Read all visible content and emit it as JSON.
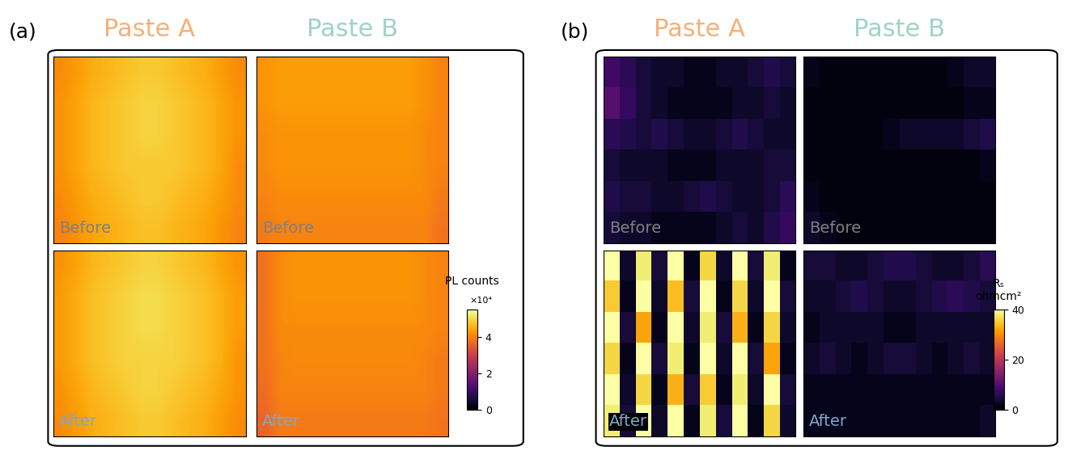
{
  "chart_data": [
    {
      "type": "heatmap",
      "panel_label": "(a)",
      "tick_labels": false,
      "columns": [
        "Paste A",
        "Paste B"
      ],
      "rows": [
        "Before",
        "After"
      ],
      "cells": [
        [
          [
            [
              41000,
              43000,
              45000,
              46000,
              47000,
              48000,
              48000,
              47000,
              46000,
              45000,
              43000,
              41000
            ],
            [
              42000,
              44000,
              46000,
              47000,
              48000,
              49000,
              49000,
              48000,
              47000,
              46000,
              44000,
              42000
            ],
            [
              42000,
              44000,
              46000,
              47000,
              48000,
              49000,
              49000,
              48000,
              47000,
              46000,
              44000,
              42000
            ],
            [
              42000,
              44000,
              46000,
              47000,
              48000,
              48000,
              48000,
              48000,
              47000,
              46000,
              44000,
              41000
            ],
            [
              41000,
              43000,
              45000,
              46000,
              47000,
              48000,
              48000,
              47000,
              46000,
              45000,
              43000,
              41000
            ],
            [
              40000,
              42000,
              44000,
              45000,
              46000,
              47000,
              47000,
              46000,
              45000,
              44000,
              42000,
              40000
            ]
          ],
          [
            [
              42000,
              43000,
              43000,
              43000,
              43000,
              43000,
              43000,
              43000,
              43000,
              43000,
              42000,
              40000
            ],
            [
              42000,
              43000,
              43000,
              43000,
              43000,
              43000,
              43000,
              43000,
              43000,
              43000,
              42000,
              40000
            ],
            [
              41000,
              42000,
              42000,
              42000,
              42000,
              42000,
              42000,
              42000,
              42000,
              42000,
              41000,
              40000
            ],
            [
              41000,
              42000,
              42000,
              42000,
              42000,
              42000,
              42000,
              42000,
              42000,
              42000,
              41000,
              40000
            ],
            [
              40000,
              41000,
              41000,
              41000,
              41000,
              41000,
              41000,
              41000,
              41000,
              41000,
              41000,
              39000
            ],
            [
              39000,
              40000,
              40000,
              40000,
              40000,
              40000,
              40000,
              40000,
              40000,
              40000,
              40000,
              38000
            ]
          ]
        ],
        [
          [
            [
              42000,
              44000,
              46000,
              47000,
              48000,
              49000,
              49000,
              48000,
              47000,
              46000,
              44000,
              42000
            ],
            [
              43000,
              45000,
              47000,
              48000,
              49000,
              50000,
              50000,
              49000,
              48000,
              47000,
              45000,
              43000
            ],
            [
              43000,
              45000,
              47000,
              48000,
              49000,
              50000,
              50000,
              49000,
              48000,
              47000,
              45000,
              43000
            ],
            [
              43000,
              45000,
              47000,
              48000,
              49000,
              49000,
              49000,
              49000,
              48000,
              47000,
              45000,
              42000
            ],
            [
              42000,
              44000,
              46000,
              47000,
              48000,
              49000,
              49000,
              48000,
              47000,
              46000,
              44000,
              42000
            ],
            [
              41000,
              43000,
              45000,
              46000,
              47000,
              48000,
              48000,
              47000,
              46000,
              45000,
              43000,
              41000
            ]
          ],
          [
            [
              38000,
              41000,
              42000,
              42000,
              42000,
              42000,
              42000,
              42000,
              42000,
              42000,
              41000,
              40000
            ],
            [
              38000,
              41000,
              42000,
              42000,
              42000,
              42000,
              42000,
              42000,
              42000,
              42000,
              41000,
              40000
            ],
            [
              38000,
              41000,
              41000,
              41000,
              41000,
              41000,
              41000,
              41000,
              41000,
              41000,
              41000,
              40000
            ],
            [
              38000,
              40000,
              41000,
              41000,
              41000,
              41000,
              41000,
              41000,
              41000,
              41000,
              40000,
              39000
            ],
            [
              37000,
              40000,
              40000,
              40000,
              40000,
              40000,
              40000,
              40000,
              40000,
              40000,
              40000,
              39000
            ],
            [
              36000,
              39000,
              39000,
              39000,
              39000,
              39000,
              39000,
              39000,
              39000,
              39000,
              39000,
              38000
            ]
          ]
        ]
      ],
      "colorbar": {
        "label": "PL counts",
        "multiplier": "×10⁴",
        "range": [
          0,
          55000
        ],
        "ticks": [
          {
            "value": 0,
            "label": "0"
          },
          {
            "value": 20000,
            "label": "2"
          },
          {
            "value": 40000,
            "label": "4"
          }
        ]
      }
    },
    {
      "type": "heatmap",
      "panel_label": "(b)",
      "tick_labels": false,
      "columns": [
        "Paste A",
        "Paste B"
      ],
      "rows": [
        "Before",
        "After"
      ],
      "cells": [
        [
          [
            [
              8,
              6,
              4,
              3,
              3,
              2,
              2,
              3,
              3,
              4,
              5,
              4
            ],
            [
              10,
              7,
              4,
              3,
              2,
              2,
              2,
              2,
              3,
              3,
              4,
              3
            ],
            [
              6,
              5,
              4,
              5,
              4,
              3,
              3,
              4,
              5,
              4,
              3,
              3
            ],
            [
              4,
              3,
              3,
              3,
              2,
              2,
              2,
              3,
              3,
              3,
              4,
              4
            ],
            [
              5,
              4,
              4,
              3,
              3,
              4,
              5,
              4,
              3,
              3,
              4,
              6
            ],
            [
              4,
              3,
              3,
              2,
              2,
              2,
              2,
              3,
              4,
              3,
              5,
              7
            ]
          ],
          [
            [
              2,
              1,
              1,
              1,
              1,
              1,
              1,
              1,
              1,
              2,
              3,
              3
            ],
            [
              1,
              1,
              1,
              1,
              1,
              1,
              1,
              1,
              1,
              1,
              2,
              2
            ],
            [
              1,
              1,
              1,
              1,
              1,
              2,
              3,
              3,
              3,
              3,
              4,
              5
            ],
            [
              1,
              1,
              1,
              1,
              1,
              1,
              1,
              1,
              1,
              1,
              1,
              2
            ],
            [
              2,
              1,
              1,
              1,
              1,
              1,
              1,
              1,
              1,
              1,
              1,
              1
            ],
            [
              3,
              2,
              1,
              1,
              1,
              1,
              1,
              1,
              1,
              1,
              1,
              1
            ]
          ]
        ],
        [
          [
            [
              40,
              3,
              38,
              4,
              40,
              2,
              36,
              3,
              40,
              4,
              38,
              2
            ],
            [
              35,
              2,
              40,
              3,
              34,
              4,
              40,
              2,
              36,
              3,
              40,
              4
            ],
            [
              40,
              4,
              32,
              2,
              40,
              3,
              38,
              4,
              33,
              2,
              36,
              3
            ],
            [
              36,
              2,
              40,
              4,
              38,
              2,
              40,
              3,
              40,
              4,
              32,
              2
            ],
            [
              40,
              3,
              36,
              2,
              33,
              4,
              35,
              2,
              38,
              3,
              40,
              4
            ],
            [
              38,
              4,
              40,
              3,
              40,
              2,
              38,
              4,
              40,
              2,
              36,
              3
            ]
          ],
          [
            [
              4,
              4,
              3,
              3,
              4,
              5,
              5,
              4,
              3,
              3,
              4,
              6
            ],
            [
              3,
              3,
              4,
              5,
              4,
              3,
              3,
              4,
              5,
              6,
              5,
              4
            ],
            [
              2,
              3,
              3,
              3,
              3,
              2,
              2,
              3,
              3,
              3,
              3,
              3
            ],
            [
              3,
              4,
              3,
              2,
              3,
              4,
              4,
              3,
              2,
              3,
              4,
              3
            ],
            [
              2,
              2,
              2,
              2,
              2,
              2,
              2,
              2,
              2,
              2,
              2,
              2
            ],
            [
              2,
              2,
              2,
              2,
              2,
              2,
              2,
              2,
              2,
              2,
              2,
              3
            ]
          ]
        ]
      ],
      "colorbar": {
        "label": "Rₛ\nohmcm²",
        "range": [
          0,
          40
        ],
        "ticks": [
          0,
          20,
          40
        ]
      }
    }
  ]
}
